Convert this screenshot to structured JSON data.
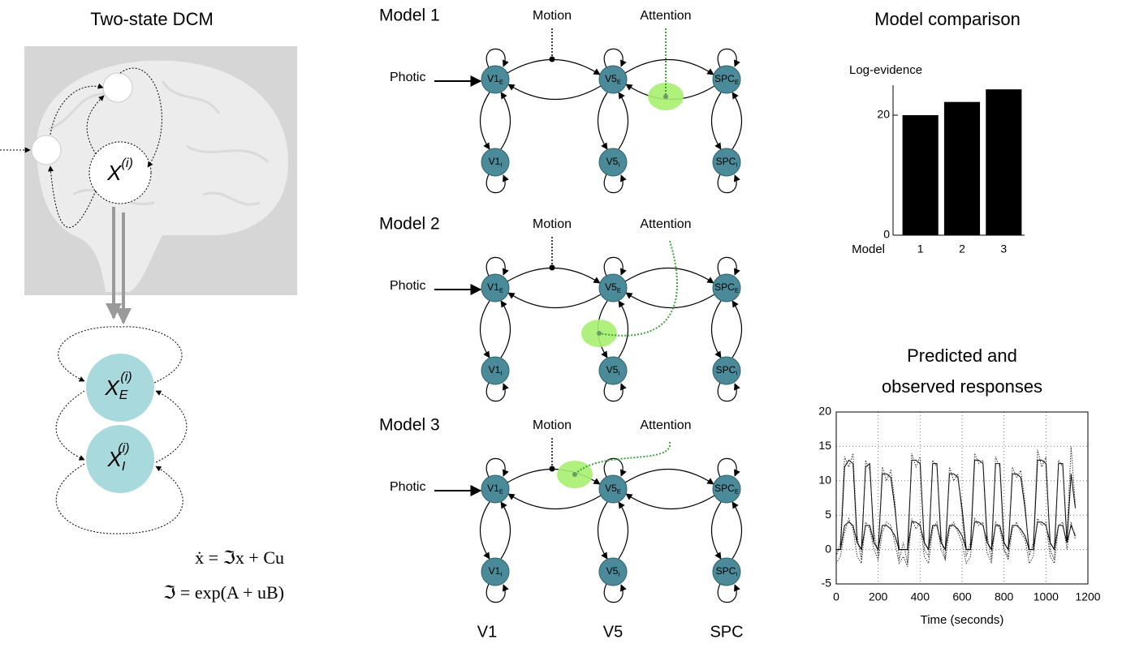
{
  "dcm": {
    "title": "Two-state DCM",
    "state": {
      "base": "X",
      "sup": "(i)"
    },
    "excitatory": {
      "base": "X",
      "sub": "E",
      "sup": "(i)"
    },
    "inhibitory": {
      "base": "X",
      "sub": "I",
      "sup": "(i)"
    },
    "equations": [
      "ẋ = ℑx + Cu",
      "ℑ = exp(A + uB)"
    ]
  },
  "models": [
    {
      "title": "Model 1",
      "inputs": [
        "Motion",
        "Attention"
      ],
      "driver": "Photic",
      "nodes": [
        {
          "name": "V1",
          "sub": "E"
        },
        {
          "name": "V5",
          "sub": "E"
        },
        {
          "name": "SPC",
          "sub": "E"
        },
        {
          "name": "V1",
          "sub": "I"
        },
        {
          "name": "V5",
          "sub": "I"
        },
        {
          "name": "SPC",
          "sub": "I"
        }
      ]
    },
    {
      "title": "Model 2",
      "inputs": [
        "Motion",
        "Attention"
      ],
      "driver": "Photic",
      "nodes": [
        {
          "name": "V1",
          "sub": "E"
        },
        {
          "name": "V5",
          "sub": "E"
        },
        {
          "name": "SPC",
          "sub": "E"
        },
        {
          "name": "V1",
          "sub": "I"
        },
        {
          "name": "V5",
          "sub": "I"
        },
        {
          "name": "SPC",
          "sub": "I"
        }
      ]
    },
    {
      "title": "Model 3",
      "inputs": [
        "Motion",
        "Attention"
      ],
      "driver": "Photic",
      "nodes": [
        {
          "name": "V1",
          "sub": "E"
        },
        {
          "name": "V5",
          "sub": "E"
        },
        {
          "name": "SPC",
          "sub": "E"
        },
        {
          "name": "V1",
          "sub": "I"
        },
        {
          "name": "V5",
          "sub": "I"
        },
        {
          "name": "SPC",
          "sub": "I"
        }
      ]
    }
  ],
  "regions": [
    "V1",
    "V5",
    "SPC"
  ],
  "chart_data": [
    {
      "type": "bar",
      "title": "Model comparison",
      "ylabel": "Log-evidence",
      "xlabel": "Model",
      "categories": [
        "1",
        "2",
        "3"
      ],
      "values": [
        20,
        22.2,
        24.3
      ],
      "color": "#000000",
      "ylim": [
        0,
        25
      ],
      "yticks": [
        0,
        20
      ]
    },
    {
      "type": "line",
      "title": [
        "Predicted and",
        "observed responses"
      ],
      "xlabel": "Time (seconds)",
      "x": [
        0,
        20,
        40,
        60,
        80,
        100,
        120,
        140,
        160,
        180,
        200,
        220,
        240,
        260,
        280,
        300,
        320,
        340,
        360,
        380,
        400,
        420,
        440,
        460,
        480,
        500,
        520,
        540,
        560,
        580,
        600,
        620,
        640,
        660,
        680,
        700,
        720,
        740,
        760,
        780,
        800,
        820,
        840,
        860,
        880,
        900,
        920,
        940,
        960,
        980,
        1000,
        1020,
        1040,
        1060,
        1080,
        1100,
        1120,
        1140
      ],
      "series": [
        {
          "color": "#000000",
          "style": "solid",
          "values": [
            0,
            0,
            12,
            13,
            12.5,
            1,
            0,
            12,
            12.5,
            1,
            0,
            11,
            11,
            10.5,
            6,
            0,
            0,
            0,
            13,
            13,
            12.5,
            1,
            0,
            12.5,
            12.5,
            1,
            0,
            11,
            11,
            10.5,
            6,
            0,
            0,
            13,
            13,
            12.5,
            1,
            0,
            12.5,
            12.5,
            1,
            0,
            11,
            11,
            10.5,
            6,
            0,
            0,
            13,
            13,
            12.5,
            1,
            0,
            12.5,
            12.5,
            1,
            11,
            6
          ]
        },
        {
          "color": "#333333",
          "style": "dotted",
          "values": [
            -1,
            1,
            13.5,
            12,
            14,
            2,
            -1.5,
            13,
            11.5,
            2.5,
            -1,
            12,
            10,
            11.5,
            7,
            -1.5,
            1,
            -2,
            14,
            12,
            13.5,
            0,
            -1,
            13,
            12,
            2,
            -1.5,
            12,
            10,
            11,
            5,
            -1,
            1,
            14,
            12.5,
            13,
            2,
            -1.5,
            13.5,
            12,
            0,
            -1,
            12,
            10.5,
            11.5,
            7,
            -1,
            1,
            14.5,
            12,
            13.5,
            0,
            -1.5,
            13,
            12,
            2,
            15,
            6.5
          ]
        },
        {
          "color": "#000000",
          "style": "solid",
          "values": [
            0,
            0,
            3.5,
            4,
            3.5,
            1,
            0,
            3.5,
            3.5,
            1,
            0,
            3.5,
            3.5,
            3,
            2,
            0,
            0,
            0,
            4,
            4,
            3.5,
            1,
            0,
            3.5,
            3.5,
            1,
            0,
            3.5,
            3.5,
            3,
            2,
            0,
            0,
            4,
            4,
            3.5,
            1,
            0,
            3.5,
            3.5,
            1,
            0,
            3.5,
            3.5,
            3,
            2,
            0,
            0,
            4,
            4,
            3.5,
            1,
            0,
            3.5,
            3.5,
            1,
            3.5,
            2
          ]
        },
        {
          "color": "#333333",
          "style": "dotted",
          "values": [
            -2,
            -1,
            2.5,
            4.5,
            3,
            -1,
            -2,
            4,
            3,
            0,
            -1.5,
            2.5,
            4,
            3.5,
            1,
            -2,
            -1,
            -2.5,
            4.5,
            3,
            4,
            -1,
            -2,
            3,
            4,
            0,
            -1.5,
            3,
            4,
            2.5,
            1,
            -2,
            -1,
            4.5,
            3.5,
            4,
            -0.5,
            -2,
            4,
            3,
            0,
            -1.5,
            3,
            4,
            2.5,
            1.5,
            -2,
            -1,
            4.5,
            3.5,
            4,
            -1,
            -2,
            3.5,
            4,
            0,
            4,
            1.5
          ]
        }
      ],
      "xlim": [
        0,
        1200
      ],
      "xticks": [
        0,
        200,
        400,
        600,
        800,
        1000,
        1200
      ],
      "ylim": [
        -5,
        20
      ],
      "yticks": [
        -5,
        0,
        5,
        10,
        15,
        20
      ],
      "grid": true
    }
  ]
}
